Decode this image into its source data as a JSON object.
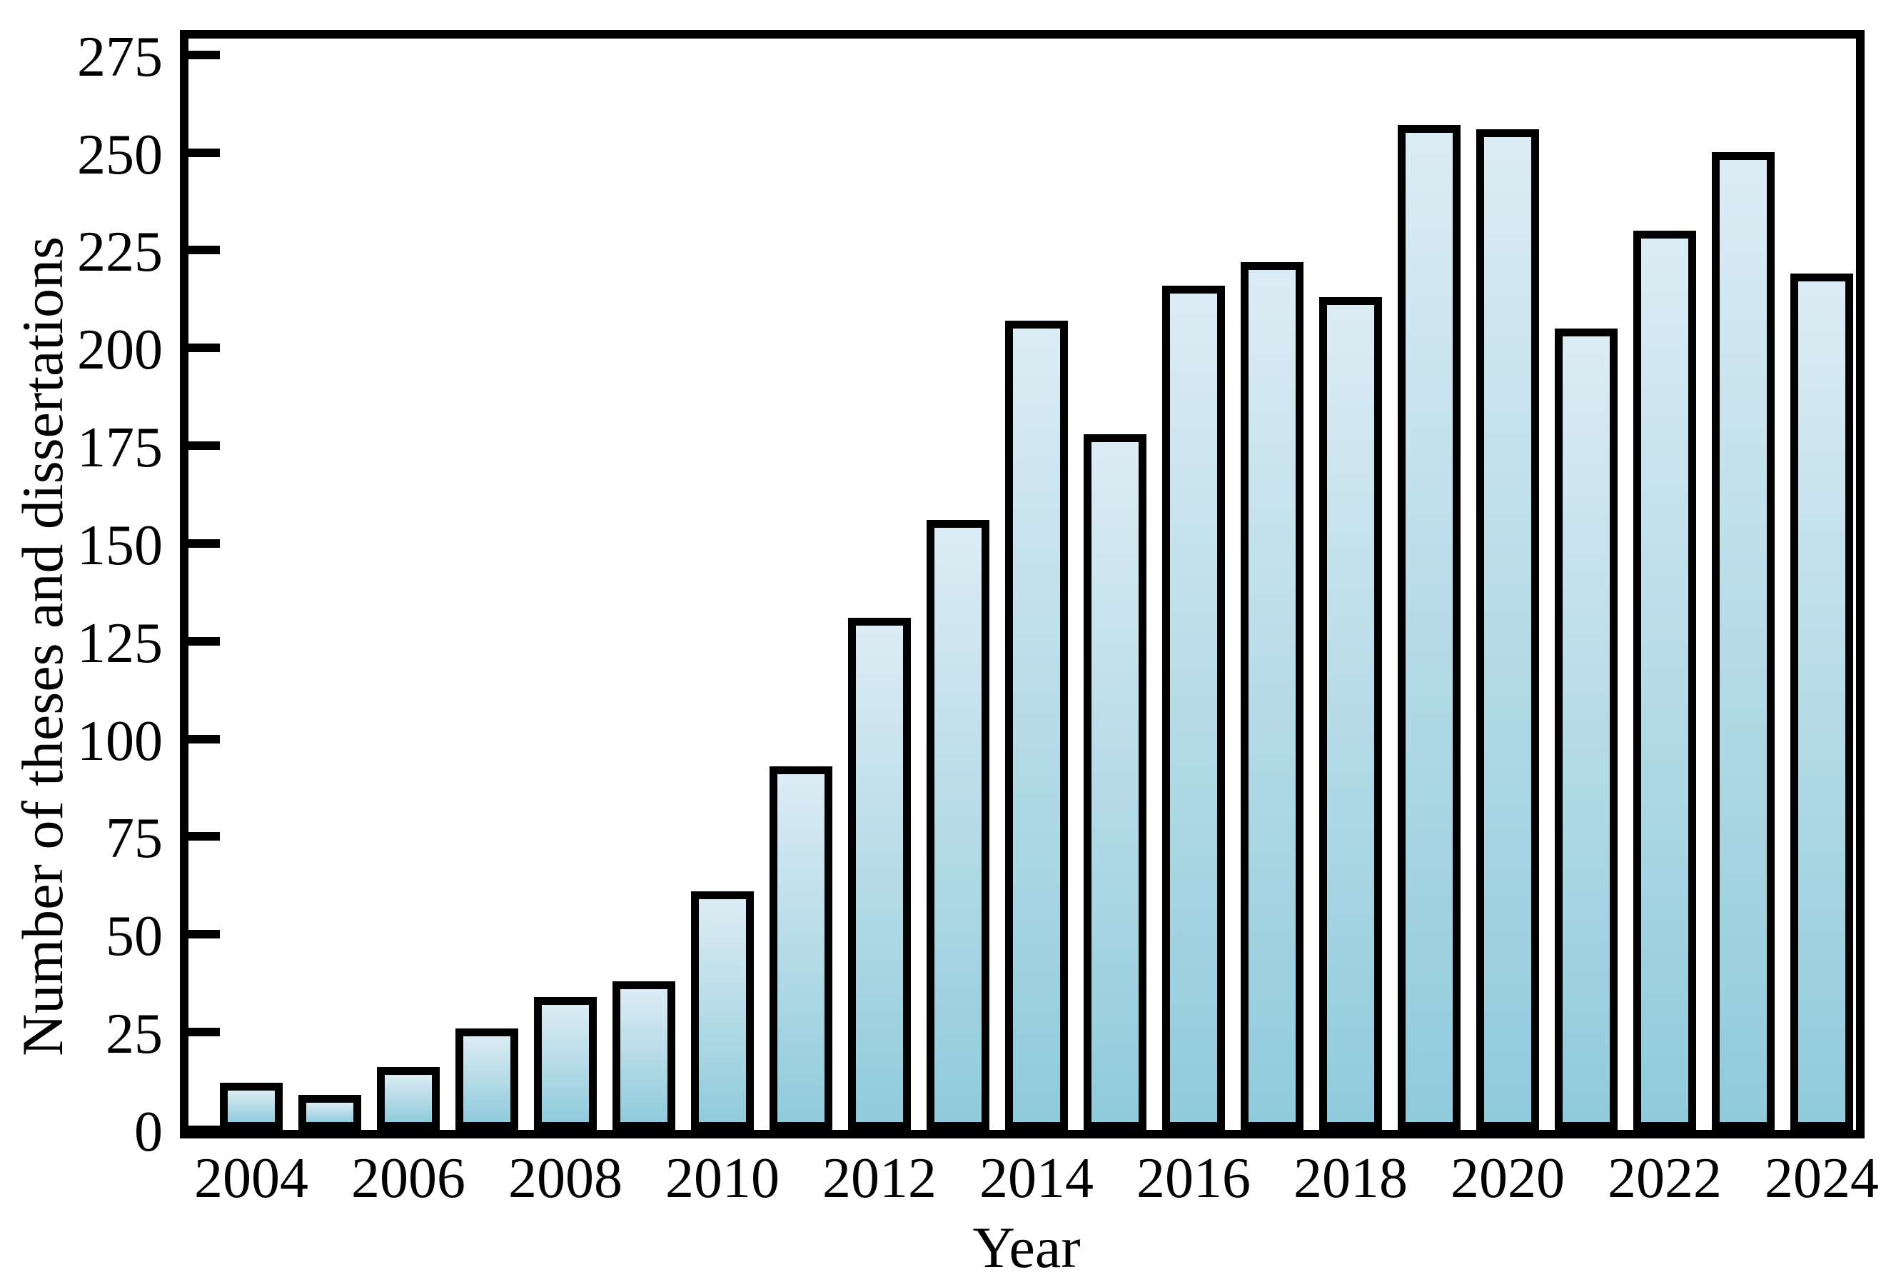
{
  "style": {
    "background": "#ffffff",
    "frame_color": "#000000",
    "bar_edge_color": "#000000",
    "bar_fill_top": "#dcecf4",
    "bar_fill_bottom": "#90cbdb",
    "text_color": "#000000"
  },
  "chart_data": {
    "type": "bar",
    "title": "",
    "xlabel": "Year",
    "ylabel": "Number of theses and dissertations",
    "categories": [
      "2004",
      "2005",
      "2006",
      "2007",
      "2008",
      "2009",
      "2010",
      "2011",
      "2012",
      "2013",
      "2014",
      "2015",
      "2016",
      "2017",
      "2018",
      "2019",
      "2020",
      "2021",
      "2022",
      "2023",
      "2024"
    ],
    "values": [
      11,
      8,
      15,
      25,
      33,
      37,
      60,
      92,
      130,
      155,
      206,
      177,
      215,
      221,
      212,
      256,
      255,
      204,
      229,
      249,
      218
    ],
    "yticks": [
      0,
      25,
      50,
      75,
      100,
      125,
      150,
      175,
      200,
      225,
      250,
      275
    ],
    "ylim": [
      0,
      280
    ],
    "xtick_label_step": 2,
    "grid": false,
    "legend_position": "none"
  }
}
